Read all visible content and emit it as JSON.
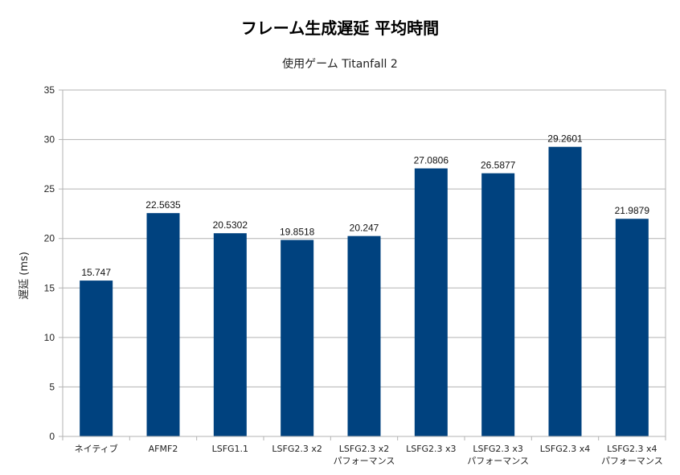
{
  "chart_data": {
    "type": "bar",
    "title": "フレーム生成遅延 平均時間",
    "subtitle": "使用ゲーム  Titanfall 2",
    "xlabel": "",
    "ylabel": "遅延 (ms)",
    "ylim": [
      0,
      35
    ],
    "yticks": [
      0,
      5,
      10,
      15,
      20,
      25,
      30,
      35
    ],
    "grid": true,
    "legend": "none",
    "bar_color": "#00427f",
    "categories": [
      [
        "ネイティブ"
      ],
      [
        "AFMF2"
      ],
      [
        "LSFG1.1"
      ],
      [
        "LSFG2.3 x2"
      ],
      [
        "LSFG2.3 x2",
        "パフォーマンス"
      ],
      [
        "LSFG2.3 x3"
      ],
      [
        "LSFG2.3 x3",
        "パフォーマンス"
      ],
      [
        "LSFG2.3 x4"
      ],
      [
        "LSFG2.3 x4",
        "パフォーマンス"
      ]
    ],
    "values": [
      15.747,
      22.5635,
      20.5302,
      19.8518,
      20.247,
      27.0806,
      26.5877,
      29.2601,
      21.9879
    ],
    "value_labels": [
      "15.747",
      "22.5635",
      "20.5302",
      "19.8518",
      "20.247",
      "27.0806",
      "26.5877",
      "29.2601",
      "21.9879"
    ]
  }
}
